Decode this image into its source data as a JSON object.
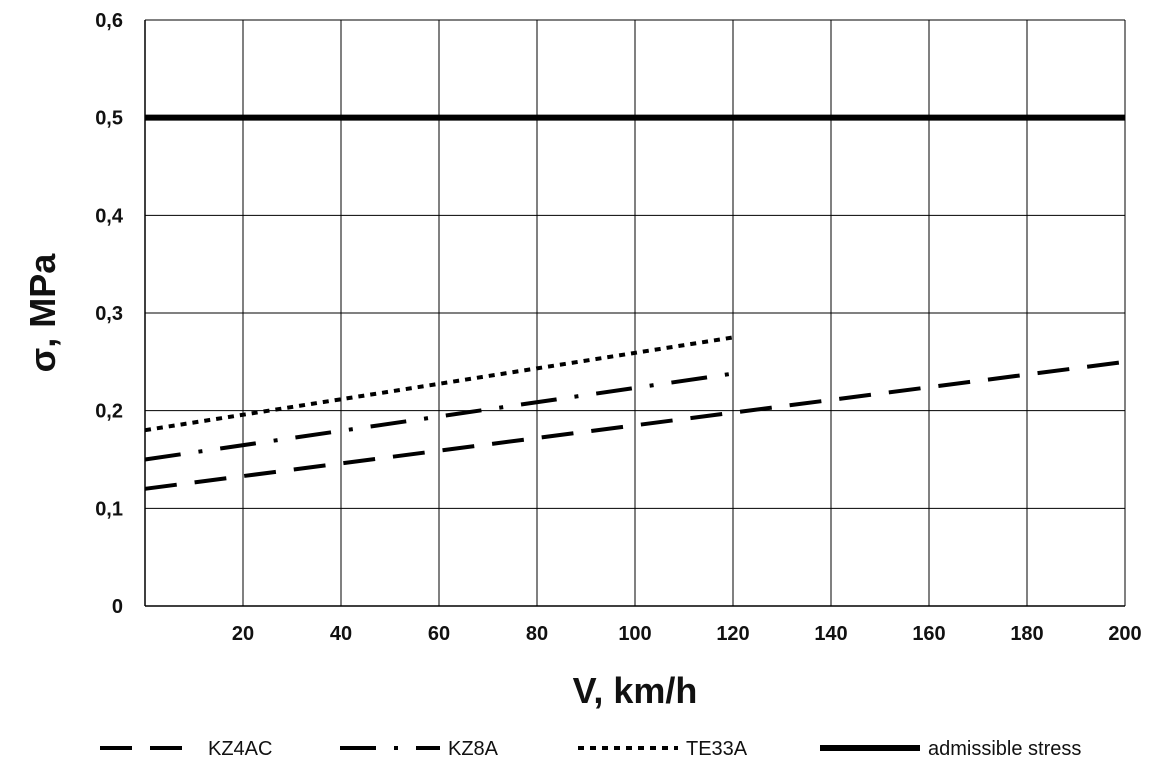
{
  "chart_data": {
    "type": "line",
    "title": "",
    "xlabel": "V, km/h",
    "ylabel": "σ, MPa",
    "xlim": [
      0,
      200
    ],
    "ylim": [
      0,
      0.6
    ],
    "x_ticks": [
      20,
      40,
      60,
      80,
      100,
      120,
      140,
      160,
      180,
      200
    ],
    "x_tick_labels": [
      "20",
      "40",
      "60",
      "80",
      "100",
      "120",
      "140",
      "160",
      "180",
      "200"
    ],
    "y_ticks": [
      0,
      0.1,
      0.2,
      0.3,
      0.4,
      0.5,
      0.6
    ],
    "y_tick_labels": [
      "0",
      "0,1",
      "0,2",
      "0,3",
      "0,4",
      "0,5",
      "0,6"
    ],
    "grid": true,
    "legend_position": "bottom",
    "series": [
      {
        "name": "KZ4AC",
        "style": "long-dash",
        "color": "#000000",
        "x": [
          0,
          200
        ],
        "y": [
          0.12,
          0.25
        ]
      },
      {
        "name": "KZ8A",
        "style": "dash-dot",
        "color": "#000000",
        "x": [
          0,
          120
        ],
        "y": [
          0.15,
          0.238
        ]
      },
      {
        "name": "TE33A",
        "style": "dotted",
        "color": "#000000",
        "x": [
          0,
          120
        ],
        "y": [
          0.18,
          0.275
        ]
      },
      {
        "name": "admissible stress",
        "style": "solid-thick",
        "color": "#000000",
        "x": [
          0,
          200
        ],
        "y": [
          0.5,
          0.5
        ]
      }
    ]
  }
}
